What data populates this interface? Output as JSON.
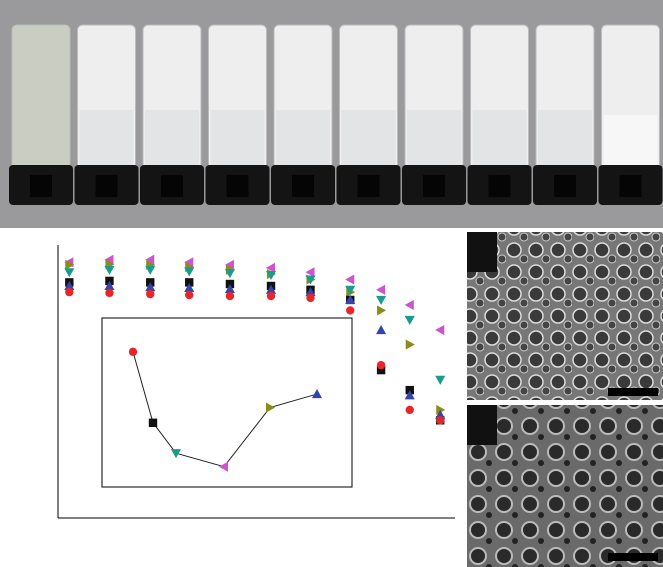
{
  "chart_data": [
    {
      "type": "scatter",
      "xscale": "log",
      "yscale": "log",
      "xlim": [
        0.01,
        100
      ],
      "ylim": [
        1,
        10000000
      ],
      "series": [
        {
          "color": "#cc55cc",
          "marker": "triangle-left",
          "x": [
            0.013,
            0.033,
            0.085,
            0.21,
            0.54,
            1.4,
            3.5,
            8.8,
            18,
            35,
            71
          ],
          "values": [
            3600000,
            4200000,
            4200000,
            3600000,
            3100000,
            2600000,
            2000000,
            1300000,
            710000,
            290000,
            66000
          ]
        },
        {
          "color": "#8c8c1a",
          "marker": "triangle-right",
          "x": [
            0.013,
            0.033,
            0.085,
            0.21,
            0.54,
            1.4,
            3.5,
            8.8,
            18,
            35,
            71
          ],
          "values": [
            3100000,
            3200000,
            3100000,
            2700000,
            2300000,
            1800000,
            1300000,
            620000,
            210000,
            28000,
            590
          ]
        },
        {
          "color": "#1a9c8c",
          "marker": "triangle-down",
          "x": [
            0.013,
            0.033,
            0.085,
            0.21,
            0.54,
            1.4,
            3.5,
            8.8,
            18,
            35,
            71
          ],
          "values": [
            2000000,
            2300000,
            2300000,
            2100000,
            1900000,
            1700000,
            1300000,
            710000,
            390000,
            120000,
            3500
          ]
        },
        {
          "color": "#111111",
          "marker": "square",
          "x": [
            0.013,
            0.033,
            0.085,
            0.21,
            0.54,
            1.4,
            3.5,
            8.8,
            18,
            35,
            71
          ],
          "values": [
            1100000,
            1200000,
            1100000,
            1100000,
            1000000,
            890000,
            710000,
            390000,
            6200,
            1900,
            320
          ]
        },
        {
          "color": "#3344aa",
          "marker": "triangle-up",
          "x": [
            0.013,
            0.033,
            0.085,
            0.21,
            0.54,
            1.4,
            3.5,
            8.8,
            18,
            35,
            71
          ],
          "values": [
            890000,
            890000,
            830000,
            790000,
            740000,
            710000,
            620000,
            390000,
            66000,
            1400,
            440
          ]
        },
        {
          "color": "#e8262a",
          "marker": "circle",
          "x": [
            0.013,
            0.033,
            0.085,
            0.21,
            0.54,
            1.4,
            3.5,
            8.8,
            18,
            35,
            71
          ],
          "values": [
            620000,
            590000,
            550000,
            520000,
            490000,
            490000,
            440000,
            210000,
            8300,
            590,
            320
          ]
        }
      ]
    },
    {
      "type": "line",
      "xlim": [
        0,
        10
      ],
      "ylim": [
        0,
        10
      ],
      "line_color": "#222222",
      "x": [
        1.24,
        2.04,
        2.96,
        4.88,
        6.72,
        8.6
      ],
      "values": [
        8.0,
        3.8,
        2.0,
        1.2,
        4.7,
        5.5
      ],
      "colors": [
        "#e8262a",
        "#111111",
        "#1a9c8c",
        "#cc55cc",
        "#8c8c1a",
        "#3344aa"
      ],
      "markers": [
        "circle",
        "square",
        "triangle-down",
        "triangle-left",
        "triangle-right",
        "triangle-up"
      ]
    }
  ]
}
